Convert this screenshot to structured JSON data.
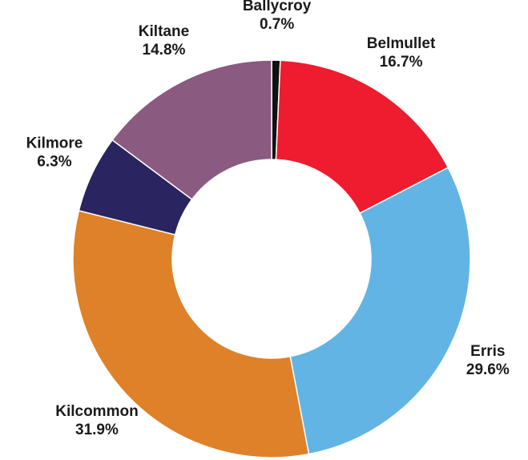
{
  "chart_data": {
    "type": "pie",
    "categories": [
      "Ballycroy",
      "Belmullet",
      "Erris",
      "Kilcommon",
      "Kilmore",
      "Kiltane"
    ],
    "values": [
      0.7,
      16.7,
      29.6,
      31.9,
      6.3,
      14.8
    ],
    "value_labels": [
      "0.7%",
      "16.7%",
      "29.6%",
      "31.9%",
      "6.3%",
      "14.8%"
    ],
    "colors": [
      "#111111",
      "#ee1c2e",
      "#62b4e4",
      "#de8128",
      "#2a2560",
      "#8a5a80"
    ]
  }
}
